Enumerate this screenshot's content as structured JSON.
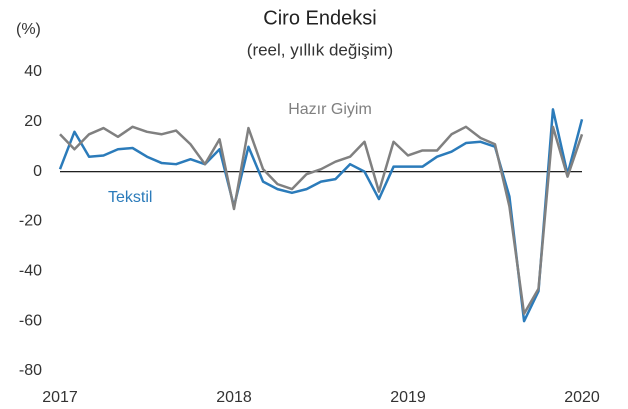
{
  "chart_data": {
    "type": "line",
    "title": "Ciro Endeksi",
    "subtitle": "(reel, yıllık değişim)",
    "y_label": "(%)",
    "x": [
      2017,
      2017.083,
      2017.167,
      2017.25,
      2017.333,
      2017.417,
      2017.5,
      2017.583,
      2017.667,
      2017.75,
      2017.833,
      2017.917,
      2018,
      2018.083,
      2018.167,
      2018.25,
      2018.333,
      2018.417,
      2018.5,
      2018.583,
      2018.667,
      2018.75,
      2018.833,
      2018.917,
      2019,
      2019.083,
      2019.167,
      2019.25,
      2019.333,
      2019.417,
      2019.5,
      2019.583,
      2019.667,
      2019.75,
      2019.833,
      2019.917,
      2020
    ],
    "series": [
      {
        "name": "Tekstil",
        "color": "#2b7bba",
        "values": [
          1,
          16,
          6,
          6.5,
          9,
          9.5,
          6,
          3.5,
          3,
          5,
          3,
          9,
          -14,
          10,
          -4,
          -7,
          -8.5,
          -7,
          -4,
          -3,
          3,
          0,
          -11,
          2,
          2,
          2,
          6,
          8,
          11.5,
          12,
          10,
          -10,
          -60,
          -48,
          25,
          -1,
          21
        ]
      },
      {
        "name": "Hazır Giyim",
        "color": "#808080",
        "values": [
          15,
          9,
          15,
          17.5,
          14,
          18,
          16,
          15,
          16.5,
          11,
          3,
          13,
          -15,
          17.5,
          1,
          -5,
          -7,
          -1,
          1,
          4,
          6,
          12,
          -8,
          12,
          6.5,
          8.5,
          8.5,
          15,
          18,
          13.5,
          11,
          -14,
          -57,
          -47,
          18,
          -2,
          15
        ]
      }
    ],
    "xlim": [
      2017,
      2020
    ],
    "xticks": [
      2017,
      2018,
      2019,
      2020
    ],
    "ylim": [
      -80,
      40
    ],
    "yticks": [
      -80,
      -60,
      -40,
      -20,
      0,
      20,
      40
    ],
    "grid": false
  }
}
